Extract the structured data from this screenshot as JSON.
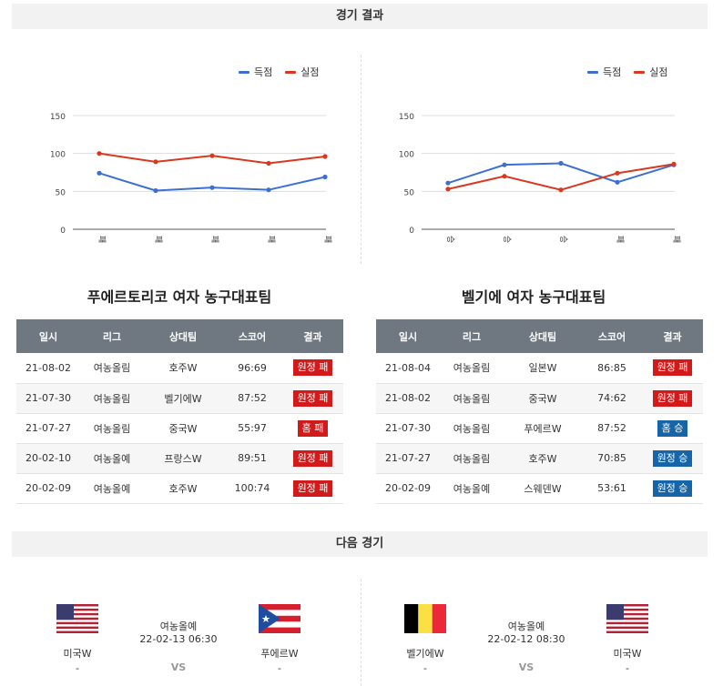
{
  "sections": {
    "results_title": "경기 결과",
    "next_title": "다음 경기"
  },
  "legend": {
    "scored": "득점",
    "conceded": "실점"
  },
  "colors": {
    "scored": "#3d6fd1",
    "conceded": "#d9381e",
    "loss": "#d31a1a",
    "win": "#1565a8",
    "header": "#6f7881"
  },
  "charts": [
    {
      "team": "푸에르토리코 여자 농구대표팀",
      "chart_data": {
        "type": "line",
        "categories": [
          "패",
          "패",
          "패",
          "패",
          "패"
        ],
        "series": [
          {
            "name": "득점",
            "values": [
              74,
              51,
              55,
              52,
              69
            ]
          },
          {
            "name": "실점",
            "values": [
              100,
              89,
              97,
              87,
              96
            ]
          }
        ],
        "yticks": [
          "0",
          "50",
          "100",
          "150"
        ],
        "ylim": [
          0,
          150
        ],
        "legend_position": "top-right",
        "grid": true
      },
      "table": {
        "headers": [
          "일시",
          "리그",
          "상대팀",
          "스코어",
          "결과"
        ],
        "rows": [
          {
            "date": "21-08-02",
            "league": "여농올림",
            "opponent": "호주W",
            "score": "96:69",
            "result": "원정 패",
            "type": "loss"
          },
          {
            "date": "21-07-30",
            "league": "여농올림",
            "opponent": "벨기에W",
            "score": "87:52",
            "result": "원정 패",
            "type": "loss"
          },
          {
            "date": "21-07-27",
            "league": "여농올림",
            "opponent": "중국W",
            "score": "55:97",
            "result": "홈 패",
            "type": "loss"
          },
          {
            "date": "20-02-10",
            "league": "여농올예",
            "opponent": "프랑스W",
            "score": "89:51",
            "result": "원정 패",
            "type": "loss"
          },
          {
            "date": "20-02-09",
            "league": "여농올예",
            "opponent": "호주W",
            "score": "100:74",
            "result": "원정 패",
            "type": "loss"
          }
        ]
      }
    },
    {
      "team": "벨기에 여자 농구대표팀",
      "chart_data": {
        "type": "line",
        "categories": [
          "승",
          "승",
          "승",
          "패",
          "패"
        ],
        "series": [
          {
            "name": "득점",
            "values": [
              61,
              85,
              87,
              62,
              85
            ]
          },
          {
            "name": "실점",
            "values": [
              53,
              70,
              52,
              74,
              86
            ]
          }
        ],
        "yticks": [
          "0",
          "50",
          "100",
          "150"
        ],
        "ylim": [
          0,
          150
        ],
        "legend_position": "top-right",
        "grid": true
      },
      "table": {
        "headers": [
          "일시",
          "리그",
          "상대팀",
          "스코어",
          "결과"
        ],
        "rows": [
          {
            "date": "21-08-04",
            "league": "여농올림",
            "opponent": "일본W",
            "score": "86:85",
            "result": "원정 패",
            "type": "loss"
          },
          {
            "date": "21-08-02",
            "league": "여농올림",
            "opponent": "중국W",
            "score": "74:62",
            "result": "원정 패",
            "type": "loss"
          },
          {
            "date": "21-07-30",
            "league": "여농올림",
            "opponent": "푸에르W",
            "score": "87:52",
            "result": "홈 승",
            "type": "win"
          },
          {
            "date": "21-07-27",
            "league": "여농올림",
            "opponent": "호주W",
            "score": "70:85",
            "result": "원정 승",
            "type": "win"
          },
          {
            "date": "20-02-09",
            "league": "여농올예",
            "opponent": "스웨덴W",
            "score": "53:61",
            "result": "원정 승",
            "type": "win"
          }
        ]
      }
    }
  ],
  "next_matches": [
    {
      "home": "미국W",
      "home_extra": "-",
      "league": "여농올예",
      "time": "22-02-13 06:30",
      "vs": "VS",
      "away": "푸에르W",
      "away_extra": "-",
      "home_flag": "us-flag-icon",
      "away_flag": "puerto-rico-flag-icon"
    },
    {
      "home": "벨기에W",
      "home_extra": "-",
      "league": "여농올예",
      "time": "22-02-12 08:30",
      "vs": "VS",
      "away": "미국W",
      "away_extra": "-",
      "home_flag": "belgium-flag-icon",
      "away_flag": "us-flag-icon"
    }
  ]
}
